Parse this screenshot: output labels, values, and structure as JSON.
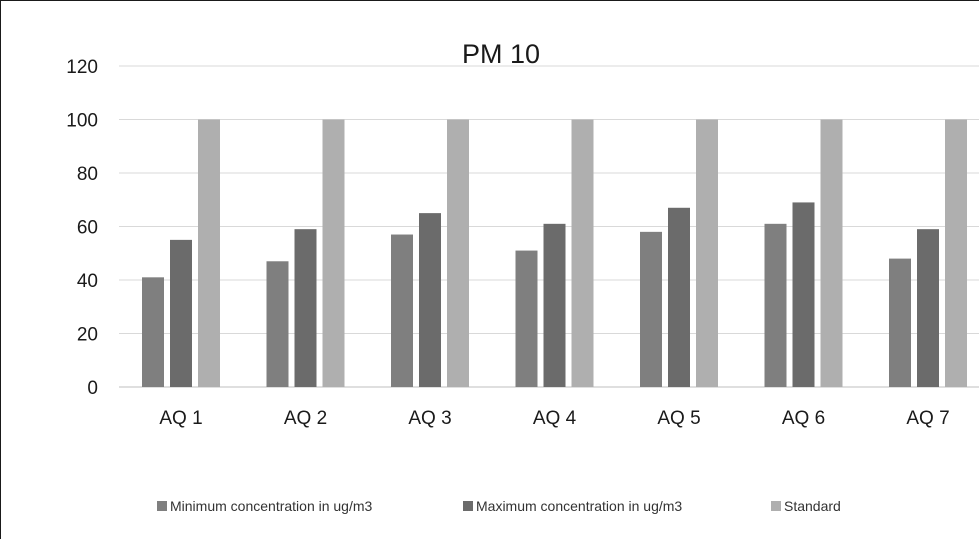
{
  "chart_data": {
    "type": "bar",
    "title": "PM 10",
    "xlabel": "",
    "ylabel": "",
    "ylim": [
      0,
      120
    ],
    "yticks": [
      0,
      20,
      40,
      60,
      80,
      100,
      120
    ],
    "grid": true,
    "legend_position": "bottom",
    "categories": [
      "AQ 1",
      "AQ 2",
      "AQ 3",
      "AQ 4",
      "AQ 5",
      "AQ 6",
      "AQ 7"
    ],
    "series": [
      {
        "name": "Minimum concentration in ug/m3",
        "color": "#7f7f7f",
        "values": [
          41,
          47,
          57,
          51,
          58,
          61,
          48
        ]
      },
      {
        "name": "Maximum concentration in ug/m3",
        "color": "#6b6b6b",
        "values": [
          55,
          59,
          65,
          61,
          67,
          69,
          59
        ]
      },
      {
        "name": "Standard",
        "color": "#afafaf",
        "values": [
          100,
          100,
          100,
          100,
          100,
          100,
          100
        ]
      }
    ]
  }
}
